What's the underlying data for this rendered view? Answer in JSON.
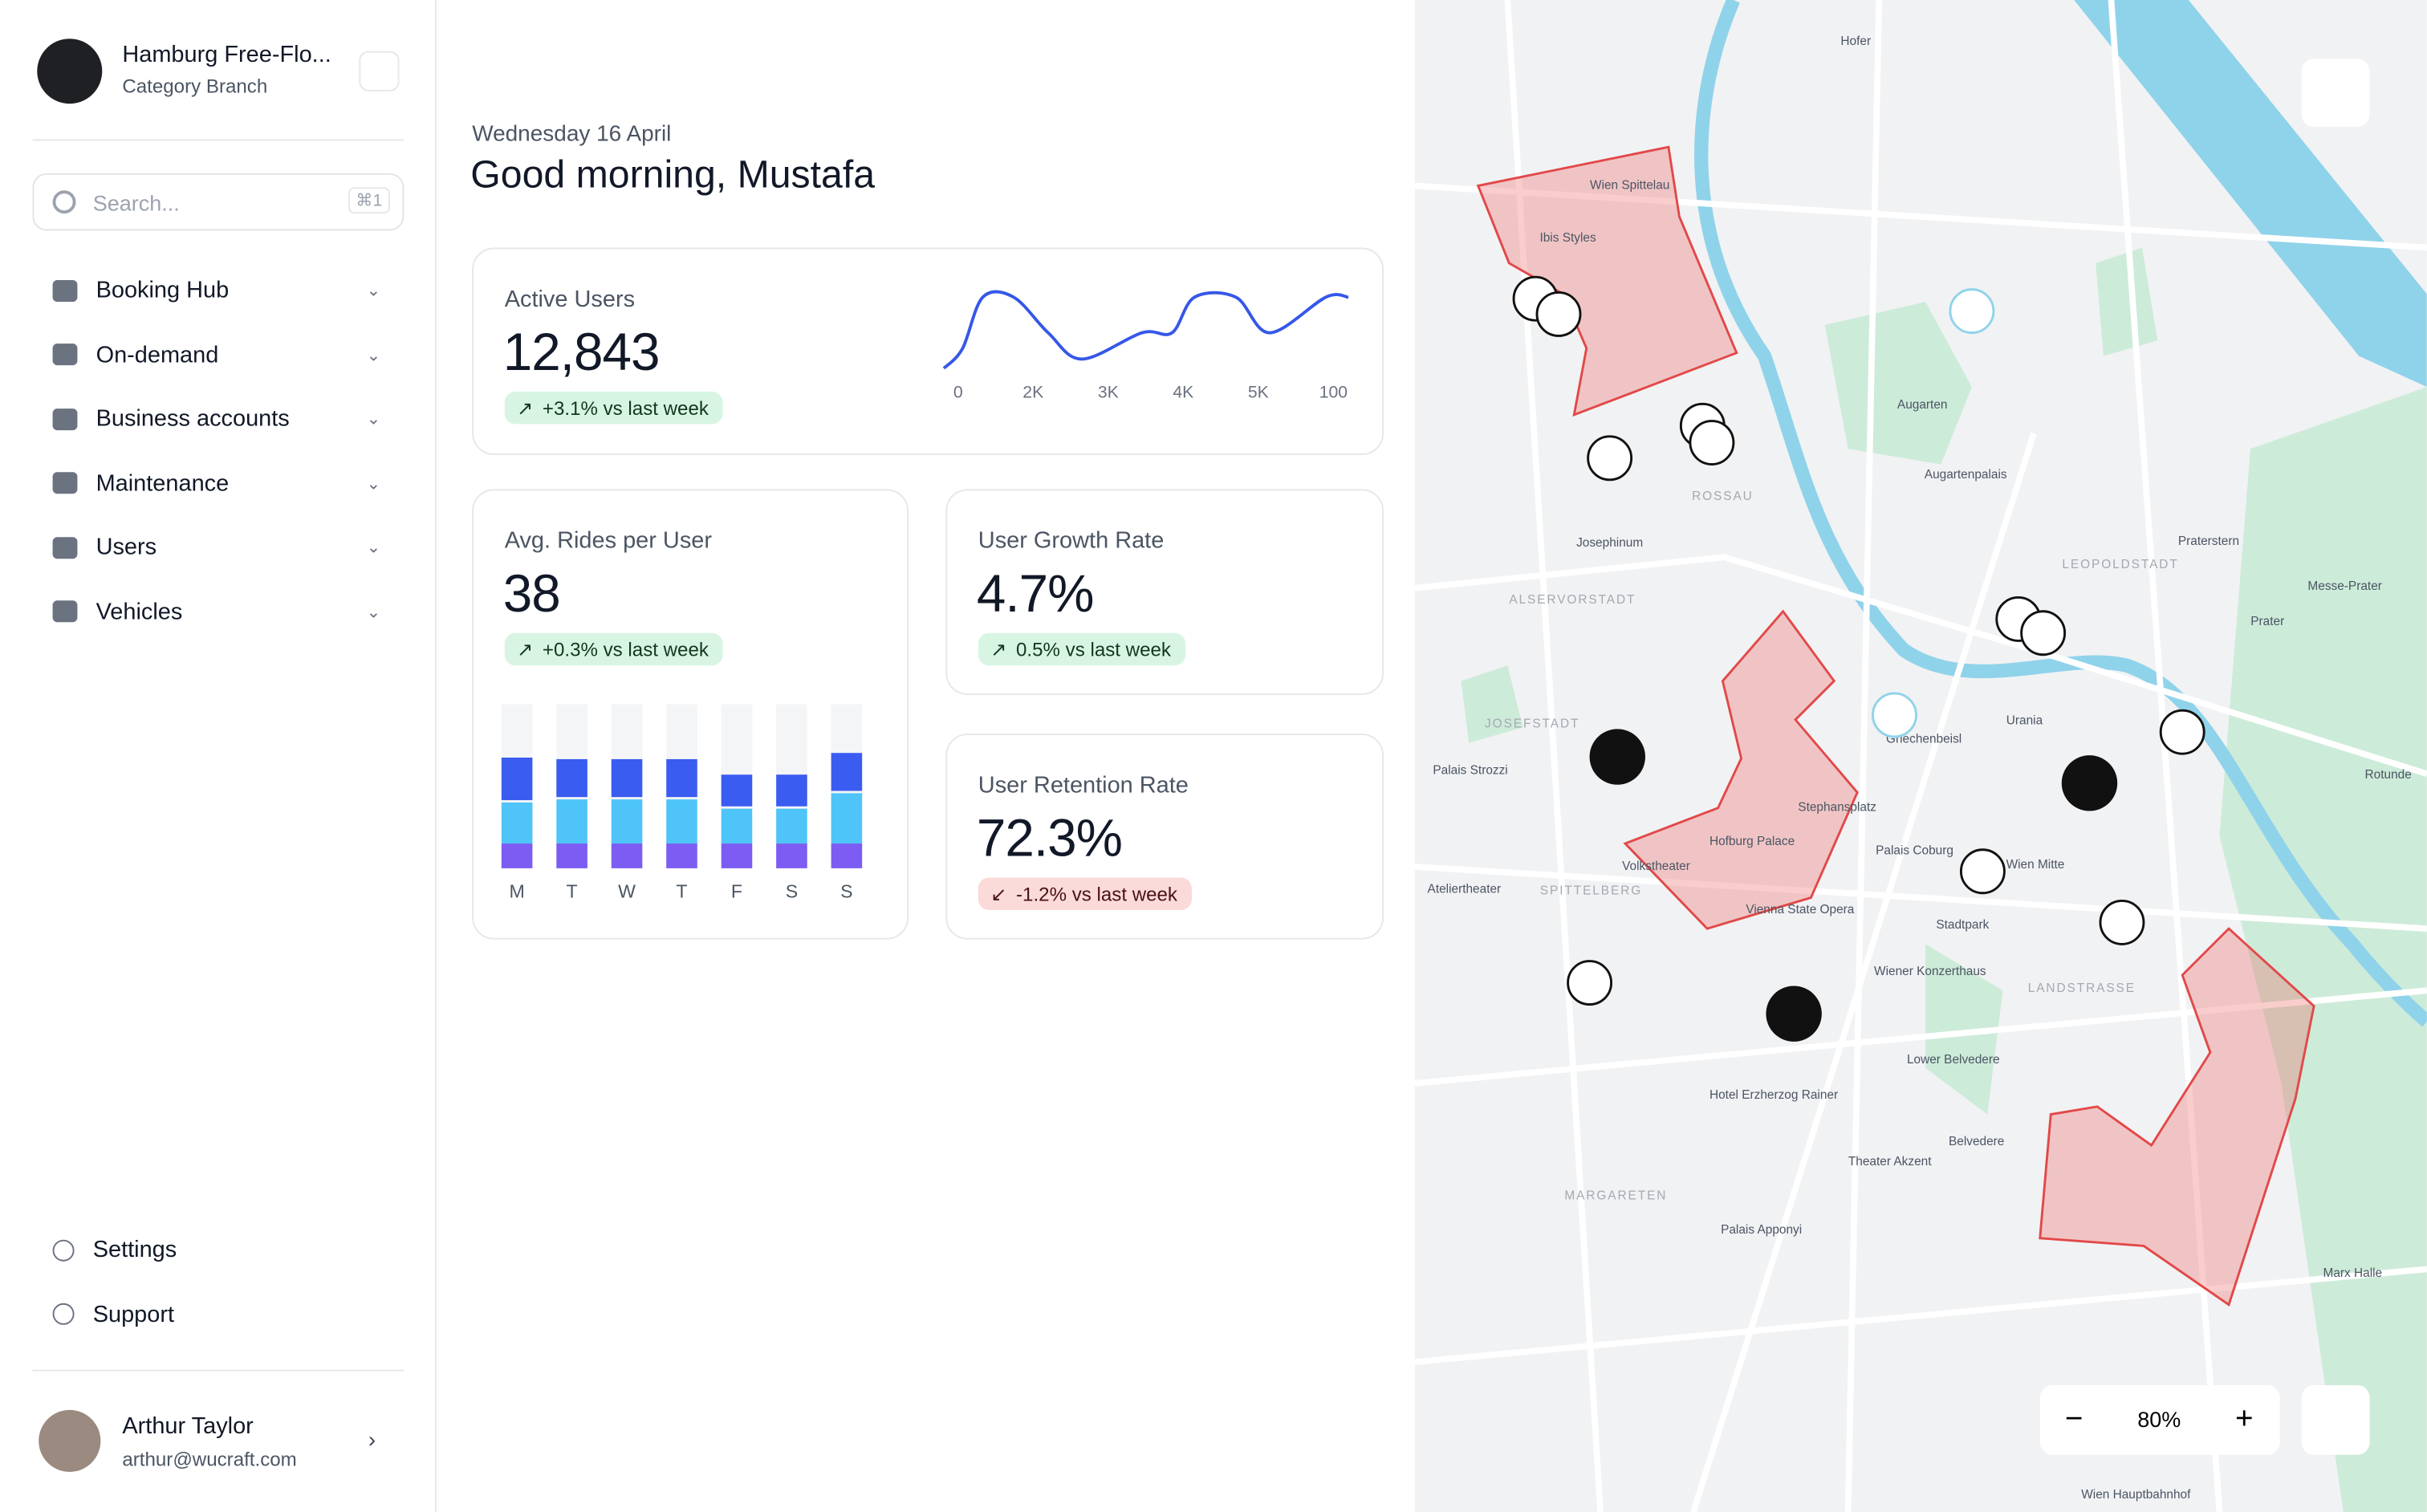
{
  "sidebar": {
    "org_name": "Hamburg Free-Flo...",
    "org_subtitle": "Category Branch",
    "search_placeholder": "Search...",
    "search_shortcut": "⌘1",
    "nav": [
      "Booking Hub",
      "On-demand",
      "Business accounts",
      "Maintenance",
      "Users",
      "Vehicles"
    ],
    "footer_nav": [
      "Settings",
      "Support"
    ],
    "user": {
      "name": "Arthur Taylor",
      "email": "arthur@wucraft.com"
    }
  },
  "header": {
    "date": "Wednesday 16 April",
    "greeting": "Good morning, Mustafa"
  },
  "cards": [
    {
      "title": "Active Users",
      "value": "12,843",
      "change": "+3.1% vs last week",
      "trend": "up"
    },
    {
      "title": "Avg. Rides per User",
      "value": "38",
      "change": "+0.3% vs last week",
      "trend": "up"
    },
    {
      "title": "User Growth Rate",
      "value": "4.7%",
      "change": "0.5% vs last week",
      "trend": "up"
    },
    {
      "title": "User Retention Rate",
      "value": "72.3%",
      "change": "-1.2% vs last week",
      "trend": "down"
    }
  ],
  "chart_data": [
    {
      "type": "line",
      "color": "#3557e8",
      "x": [
        -0.19,
        0.06,
        0.33,
        0.74,
        1.2,
        1.65,
        2.45,
        2.85,
        3.15,
        3.7,
        4.15,
        4.9,
        5.2
      ],
      "values": [
        0,
        2.8,
        10,
        10,
        5,
        1.3,
        5,
        5,
        10,
        10,
        5,
        10,
        10
      ],
      "xlim": [
        -0.19,
        5.2
      ],
      "ylim": [
        0,
        10
      ],
      "xticks": [
        {
          "value": 0,
          "label": "0"
        },
        {
          "value": 1,
          "label": "2K"
        },
        {
          "value": 2,
          "label": "3K"
        },
        {
          "value": 3,
          "label": "4K"
        },
        {
          "value": 4,
          "label": "5K"
        },
        {
          "value": 5,
          "label": "100"
        }
      ]
    },
    {
      "type": "bar",
      "stacked": true,
      "categories": [
        "M",
        "T",
        "W",
        "T",
        "F",
        "S",
        "S"
      ],
      "ylim": [
        0,
        106
      ],
      "series": [
        {
          "color": "#7c5cf2",
          "values": [
            16,
            16,
            16,
            16,
            16,
            16,
            16
          ]
        },
        {
          "color": "#4fc4f8",
          "values": [
            28,
            30,
            30,
            30,
            24,
            24,
            34
          ]
        },
        {
          "color": "#3a5cf0",
          "values": [
            29,
            26,
            26,
            26,
            22,
            22,
            26
          ]
        }
      ]
    }
  ],
  "map": {
    "zoom": "80%",
    "labels": [
      "Wien Spittelau",
      "Ibis Styles",
      "Augarten",
      "Augartenpalais",
      "Josephinum",
      "Prater",
      "Praterstern",
      "Hofburg Palace",
      "Vienna State Opera",
      "Stadtpark",
      "Belvedere",
      "Lower Belvedere",
      "Wiener Konzerthaus",
      "Palais Coburg",
      "Urania",
      "Griechenbeisl",
      "Volkstheater",
      "Theater Akzent",
      "Hotel Erzherzog Rainer",
      "Palais Strozzi",
      "Ateliertheater",
      "Wien Mitte",
      "Rotunde",
      "Messe-Prater",
      "Stephansplatz",
      "Hofer",
      "Marx Halle",
      "Palais Apponyi",
      "Wien Hauptbahnhof"
    ],
    "districts": [
      "ALSERVORSTADT",
      "LEOPOLDSTADT",
      "MARGARETEN",
      "LANDSTRASSE",
      "ROSSAU",
      "JOSEFSTADT",
      "SPITTELBERG"
    ]
  }
}
